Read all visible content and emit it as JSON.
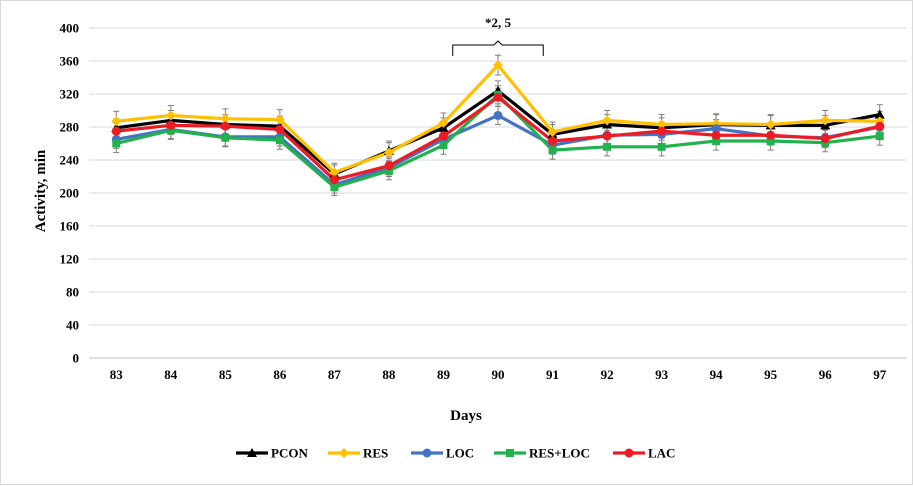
{
  "chart_data": {
    "type": "line",
    "title": "",
    "xlabel": "Days",
    "ylabel": "Activity, min",
    "categories": [
      "83",
      "84",
      "85",
      "86",
      "87",
      "88",
      "89",
      "90",
      "91",
      "92",
      "93",
      "94",
      "95",
      "96",
      "97"
    ],
    "ylim": [
      0,
      400
    ],
    "yticks": [
      0,
      40,
      80,
      120,
      160,
      200,
      240,
      280,
      320,
      360,
      400
    ],
    "grid": true,
    "legend_position": "bottom",
    "series": [
      {
        "name": "PCON",
        "color": "#000000",
        "marker": "triangle",
        "values": [
          279,
          288,
          283,
          281,
          223,
          251,
          279,
          324,
          271,
          283,
          279,
          283,
          282,
          282,
          295
        ],
        "errors": [
          11,
          12,
          12,
          12,
          11,
          12,
          12,
          12,
          12,
          12,
          12,
          12,
          12,
          12,
          12
        ]
      },
      {
        "name": "RES",
        "color": "#ffc000",
        "marker": "diamond",
        "values": [
          287,
          294,
          290,
          289,
          225,
          249,
          285,
          355,
          274,
          288,
          283,
          284,
          283,
          288,
          287
        ],
        "errors": [
          12,
          12,
          12,
          12,
          11,
          12,
          12,
          12,
          12,
          12,
          12,
          12,
          12,
          12,
          12
        ]
      },
      {
        "name": "LOC",
        "color": "#4472c4",
        "marker": "circle",
        "values": [
          265,
          277,
          268,
          268,
          210,
          231,
          265,
          294,
          258,
          270,
          271,
          278,
          269,
          267,
          280
        ],
        "errors": [
          11,
          11,
          11,
          11,
          10,
          11,
          11,
          11,
          11,
          11,
          11,
          11,
          11,
          11,
          11
        ]
      },
      {
        "name": "RES+LOC",
        "color": "#22b14c",
        "marker": "square",
        "values": [
          260,
          276,
          267,
          264,
          207,
          227,
          258,
          319,
          252,
          256,
          256,
          263,
          263,
          261,
          269
        ],
        "errors": [
          11,
          11,
          11,
          11,
          10,
          11,
          11,
          11,
          11,
          11,
          11,
          11,
          11,
          11,
          11
        ]
      },
      {
        "name": "LAC",
        "color": "#ed1c24",
        "marker": "circle",
        "values": [
          275,
          282,
          281,
          277,
          216,
          233,
          269,
          316,
          263,
          269,
          275,
          270,
          270,
          266,
          281
        ],
        "errors": [
          11,
          11,
          11,
          11,
          10,
          11,
          11,
          11,
          11,
          11,
          11,
          11,
          11,
          11,
          11
        ]
      }
    ],
    "annotations": [
      {
        "text": "*2, 5",
        "x_from": "89",
        "x_to": "91"
      }
    ]
  }
}
